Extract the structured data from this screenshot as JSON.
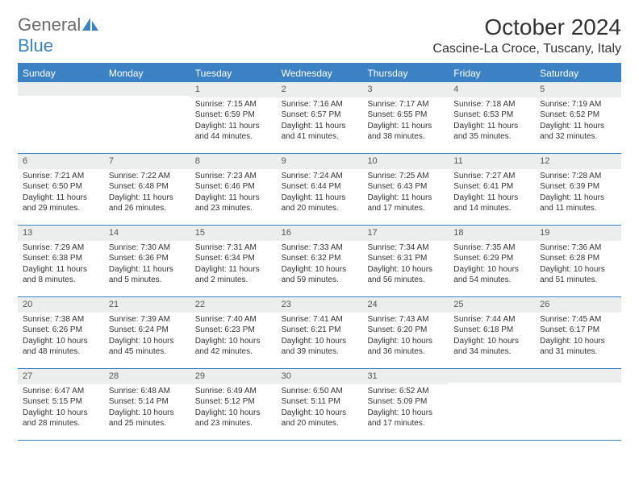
{
  "logo": {
    "text1": "General",
    "text2": "Blue"
  },
  "title": "October 2024",
  "location": "Cascine-La Croce, Tuscany, Italy",
  "colors": {
    "accent": "#3b82c4",
    "daynum_bg": "#eceded",
    "text": "#333333",
    "logo_gray": "#6b6b6b"
  },
  "day_headers": [
    "Sunday",
    "Monday",
    "Tuesday",
    "Wednesday",
    "Thursday",
    "Friday",
    "Saturday"
  ],
  "weeks": [
    [
      null,
      null,
      {
        "n": "1",
        "sr": "Sunrise: 7:15 AM",
        "ss": "Sunset: 6:59 PM",
        "d1": "Daylight: 11 hours",
        "d2": "and 44 minutes."
      },
      {
        "n": "2",
        "sr": "Sunrise: 7:16 AM",
        "ss": "Sunset: 6:57 PM",
        "d1": "Daylight: 11 hours",
        "d2": "and 41 minutes."
      },
      {
        "n": "3",
        "sr": "Sunrise: 7:17 AM",
        "ss": "Sunset: 6:55 PM",
        "d1": "Daylight: 11 hours",
        "d2": "and 38 minutes."
      },
      {
        "n": "4",
        "sr": "Sunrise: 7:18 AM",
        "ss": "Sunset: 6:53 PM",
        "d1": "Daylight: 11 hours",
        "d2": "and 35 minutes."
      },
      {
        "n": "5",
        "sr": "Sunrise: 7:19 AM",
        "ss": "Sunset: 6:52 PM",
        "d1": "Daylight: 11 hours",
        "d2": "and 32 minutes."
      }
    ],
    [
      {
        "n": "6",
        "sr": "Sunrise: 7:21 AM",
        "ss": "Sunset: 6:50 PM",
        "d1": "Daylight: 11 hours",
        "d2": "and 29 minutes."
      },
      {
        "n": "7",
        "sr": "Sunrise: 7:22 AM",
        "ss": "Sunset: 6:48 PM",
        "d1": "Daylight: 11 hours",
        "d2": "and 26 minutes."
      },
      {
        "n": "8",
        "sr": "Sunrise: 7:23 AM",
        "ss": "Sunset: 6:46 PM",
        "d1": "Daylight: 11 hours",
        "d2": "and 23 minutes."
      },
      {
        "n": "9",
        "sr": "Sunrise: 7:24 AM",
        "ss": "Sunset: 6:44 PM",
        "d1": "Daylight: 11 hours",
        "d2": "and 20 minutes."
      },
      {
        "n": "10",
        "sr": "Sunrise: 7:25 AM",
        "ss": "Sunset: 6:43 PM",
        "d1": "Daylight: 11 hours",
        "d2": "and 17 minutes."
      },
      {
        "n": "11",
        "sr": "Sunrise: 7:27 AM",
        "ss": "Sunset: 6:41 PM",
        "d1": "Daylight: 11 hours",
        "d2": "and 14 minutes."
      },
      {
        "n": "12",
        "sr": "Sunrise: 7:28 AM",
        "ss": "Sunset: 6:39 PM",
        "d1": "Daylight: 11 hours",
        "d2": "and 11 minutes."
      }
    ],
    [
      {
        "n": "13",
        "sr": "Sunrise: 7:29 AM",
        "ss": "Sunset: 6:38 PM",
        "d1": "Daylight: 11 hours",
        "d2": "and 8 minutes."
      },
      {
        "n": "14",
        "sr": "Sunrise: 7:30 AM",
        "ss": "Sunset: 6:36 PM",
        "d1": "Daylight: 11 hours",
        "d2": "and 5 minutes."
      },
      {
        "n": "15",
        "sr": "Sunrise: 7:31 AM",
        "ss": "Sunset: 6:34 PM",
        "d1": "Daylight: 11 hours",
        "d2": "and 2 minutes."
      },
      {
        "n": "16",
        "sr": "Sunrise: 7:33 AM",
        "ss": "Sunset: 6:32 PM",
        "d1": "Daylight: 10 hours",
        "d2": "and 59 minutes."
      },
      {
        "n": "17",
        "sr": "Sunrise: 7:34 AM",
        "ss": "Sunset: 6:31 PM",
        "d1": "Daylight: 10 hours",
        "d2": "and 56 minutes."
      },
      {
        "n": "18",
        "sr": "Sunrise: 7:35 AM",
        "ss": "Sunset: 6:29 PM",
        "d1": "Daylight: 10 hours",
        "d2": "and 54 minutes."
      },
      {
        "n": "19",
        "sr": "Sunrise: 7:36 AM",
        "ss": "Sunset: 6:28 PM",
        "d1": "Daylight: 10 hours",
        "d2": "and 51 minutes."
      }
    ],
    [
      {
        "n": "20",
        "sr": "Sunrise: 7:38 AM",
        "ss": "Sunset: 6:26 PM",
        "d1": "Daylight: 10 hours",
        "d2": "and 48 minutes."
      },
      {
        "n": "21",
        "sr": "Sunrise: 7:39 AM",
        "ss": "Sunset: 6:24 PM",
        "d1": "Daylight: 10 hours",
        "d2": "and 45 minutes."
      },
      {
        "n": "22",
        "sr": "Sunrise: 7:40 AM",
        "ss": "Sunset: 6:23 PM",
        "d1": "Daylight: 10 hours",
        "d2": "and 42 minutes."
      },
      {
        "n": "23",
        "sr": "Sunrise: 7:41 AM",
        "ss": "Sunset: 6:21 PM",
        "d1": "Daylight: 10 hours",
        "d2": "and 39 minutes."
      },
      {
        "n": "24",
        "sr": "Sunrise: 7:43 AM",
        "ss": "Sunset: 6:20 PM",
        "d1": "Daylight: 10 hours",
        "d2": "and 36 minutes."
      },
      {
        "n": "25",
        "sr": "Sunrise: 7:44 AM",
        "ss": "Sunset: 6:18 PM",
        "d1": "Daylight: 10 hours",
        "d2": "and 34 minutes."
      },
      {
        "n": "26",
        "sr": "Sunrise: 7:45 AM",
        "ss": "Sunset: 6:17 PM",
        "d1": "Daylight: 10 hours",
        "d2": "and 31 minutes."
      }
    ],
    [
      {
        "n": "27",
        "sr": "Sunrise: 6:47 AM",
        "ss": "Sunset: 5:15 PM",
        "d1": "Daylight: 10 hours",
        "d2": "and 28 minutes."
      },
      {
        "n": "28",
        "sr": "Sunrise: 6:48 AM",
        "ss": "Sunset: 5:14 PM",
        "d1": "Daylight: 10 hours",
        "d2": "and 25 minutes."
      },
      {
        "n": "29",
        "sr": "Sunrise: 6:49 AM",
        "ss": "Sunset: 5:12 PM",
        "d1": "Daylight: 10 hours",
        "d2": "and 23 minutes."
      },
      {
        "n": "30",
        "sr": "Sunrise: 6:50 AM",
        "ss": "Sunset: 5:11 PM",
        "d1": "Daylight: 10 hours",
        "d2": "and 20 minutes."
      },
      {
        "n": "31",
        "sr": "Sunrise: 6:52 AM",
        "ss": "Sunset: 5:09 PM",
        "d1": "Daylight: 10 hours",
        "d2": "and 17 minutes."
      },
      null,
      null
    ]
  ]
}
